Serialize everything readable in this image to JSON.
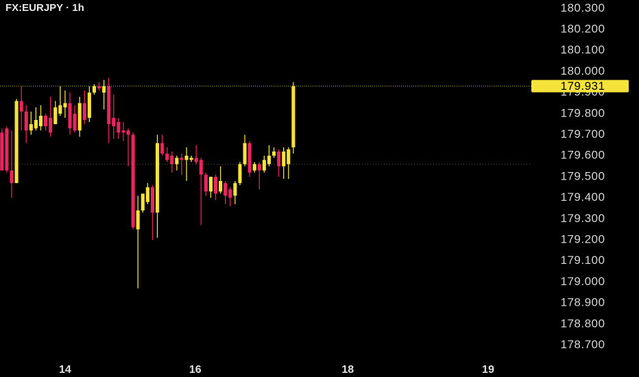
{
  "chart_data": {
    "type": "candlestick",
    "title": "FX:EURJPY · 1h",
    "up_color": "#f5e33b",
    "down_color": "#e8255f",
    "open": [
      179.71,
      179.73,
      179.53,
      179.47,
      179.86,
      179.81,
      179.72,
      179.73,
      179.74,
      179.79,
      179.78,
      179.75,
      179.8,
      179.83,
      179.85,
      179.8,
      179.72,
      179.85,
      179.78,
      179.9,
      179.93,
      179.9,
      179.93,
      179.78,
      179.76,
      179.72,
      179.72,
      179.7,
      179.25,
      179.34,
      179.38,
      179.45,
      179.33,
      179.66,
      179.61,
      179.6,
      179.56,
      179.59,
      179.58,
      179.58,
      179.59,
      179.58,
      179.51,
      179.43,
      179.5,
      179.43,
      179.47,
      179.44,
      179.41,
      179.47,
      179.56,
      179.66,
      179.53,
      179.56,
      179.53,
      179.56,
      179.6,
      179.62,
      179.55,
      179.56,
      179.64
    ],
    "high": [
      179.73,
      179.74,
      179.72,
      179.87,
      179.93,
      179.84,
      179.81,
      179.83,
      179.84,
      179.8,
      179.88,
      179.86,
      179.93,
      179.91,
      179.9,
      179.84,
      179.88,
      179.91,
      179.93,
      179.94,
      179.95,
      179.96,
      179.97,
      179.89,
      179.78,
      179.76,
      179.73,
      179.71,
      179.41,
      179.42,
      179.47,
      179.46,
      179.7,
      179.7,
      179.64,
      179.62,
      179.6,
      179.61,
      179.64,
      179.6,
      179.65,
      179.59,
      179.52,
      179.5,
      179.51,
      179.55,
      179.48,
      179.45,
      179.48,
      179.57,
      179.7,
      179.67,
      179.57,
      179.57,
      179.6,
      179.65,
      179.64,
      179.63,
      179.64,
      179.64,
      179.95
    ],
    "low": [
      179.53,
      179.52,
      179.4,
      179.47,
      179.72,
      179.66,
      179.7,
      179.72,
      179.72,
      179.72,
      179.69,
      179.75,
      179.79,
      179.78,
      179.7,
      179.71,
      179.69,
      179.75,
      179.76,
      179.89,
      179.91,
      179.82,
      179.66,
      179.68,
      179.68,
      179.67,
      179.55,
      179.25,
      178.97,
      179.33,
      179.37,
      179.2,
      179.21,
      179.6,
      179.57,
      179.52,
      179.53,
      179.51,
      179.48,
      179.57,
      179.56,
      179.27,
      179.41,
      179.4,
      179.39,
      179.42,
      179.37,
      179.36,
      179.37,
      179.46,
      179.55,
      179.5,
      179.52,
      179.44,
      179.52,
      179.55,
      179.59,
      179.5,
      179.49,
      179.49,
      179.61
    ],
    "close": [
      179.53,
      179.53,
      179.47,
      179.86,
      179.81,
      179.72,
      179.75,
      179.77,
      179.79,
      179.74,
      179.71,
      179.83,
      179.84,
      179.85,
      179.73,
      179.72,
      179.85,
      179.77,
      179.9,
      179.93,
      179.92,
      179.93,
      179.75,
      179.74,
      179.71,
      179.71,
      179.7,
      179.26,
      179.34,
      179.42,
      179.45,
      179.33,
      179.66,
      179.61,
      179.58,
      179.56,
      179.59,
      179.58,
      179.6,
      179.59,
      179.57,
      179.51,
      179.43,
      179.5,
      179.42,
      179.48,
      179.41,
      179.4,
      179.47,
      179.56,
      179.66,
      179.52,
      179.56,
      179.53,
      179.58,
      179.6,
      179.62,
      179.55,
      179.62,
      179.63,
      179.93
    ],
    "last_price": 179.931,
    "reference_price": 179.56,
    "xlim": [
      -0.4,
      109
    ],
    "xticks": [
      {
        "value": 13,
        "label": "14"
      },
      {
        "value": 39.8,
        "label": "16"
      },
      {
        "value": 71.2,
        "label": "18"
      },
      {
        "value": 100.1,
        "label": "19"
      }
    ],
    "ylim": [
      178.63,
      180.34
    ],
    "yticks": [
      {
        "value": 180.3,
        "label": "180.300"
      },
      {
        "value": 180.2,
        "label": "180.200"
      },
      {
        "value": 180.1,
        "label": "180.100"
      },
      {
        "value": 180.0,
        "label": "180.000"
      },
      {
        "value": 179.9,
        "label": "179.900"
      },
      {
        "value": 179.8,
        "label": "179.800"
      },
      {
        "value": 179.7,
        "label": "179.700"
      },
      {
        "value": 179.6,
        "label": "179.600"
      },
      {
        "value": 179.5,
        "label": "179.500"
      },
      {
        "value": 179.4,
        "label": "179.400"
      },
      {
        "value": 179.3,
        "label": "179.300"
      },
      {
        "value": 179.2,
        "label": "179.200"
      },
      {
        "value": 179.1,
        "label": "179.100"
      },
      {
        "value": 179.0,
        "label": "179.000"
      },
      {
        "value": 178.9,
        "label": "178.900"
      },
      {
        "value": 178.8,
        "label": "178.800"
      },
      {
        "value": 178.7,
        "label": "178.700"
      }
    ]
  }
}
